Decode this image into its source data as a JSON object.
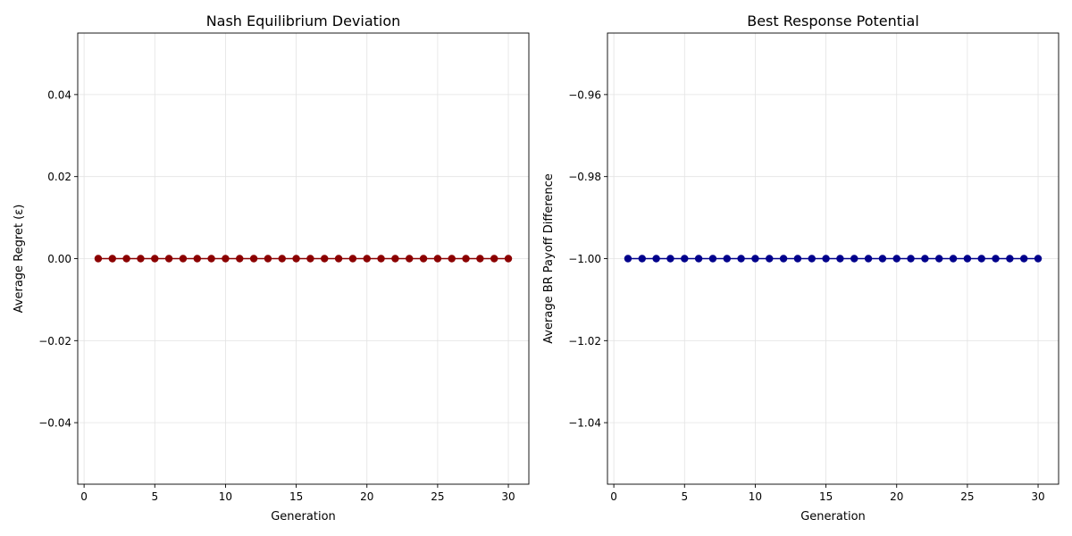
{
  "chart_data": [
    {
      "type": "line",
      "title": "Nash Equilibrium Deviation",
      "xlabel": "Generation",
      "ylabel": "Average Regret (ε)",
      "xlim": [
        -0.45,
        31.45
      ],
      "ylim": [
        -0.055,
        0.055
      ],
      "xticks": [
        0,
        5,
        10,
        15,
        20,
        25,
        30
      ],
      "xtick_labels": [
        "0",
        "5",
        "10",
        "15",
        "20",
        "25",
        "30"
      ],
      "yticks": [
        -0.04,
        -0.02,
        0.0,
        0.02,
        0.04
      ],
      "ytick_labels": [
        "−0.04",
        "−0.02",
        "0.00",
        "0.02",
        "0.04"
      ],
      "grid": true,
      "color": "#8b0000",
      "marker": "circle",
      "x": [
        1,
        2,
        3,
        4,
        5,
        6,
        7,
        8,
        9,
        10,
        11,
        12,
        13,
        14,
        15,
        16,
        17,
        18,
        19,
        20,
        21,
        22,
        23,
        24,
        25,
        26,
        27,
        28,
        29,
        30
      ],
      "y": [
        0,
        0,
        0,
        0,
        0,
        0,
        0,
        0,
        0,
        0,
        0,
        0,
        0,
        0,
        0,
        0,
        0,
        0,
        0,
        0,
        0,
        0,
        0,
        0,
        0,
        0,
        0,
        0,
        0,
        0
      ]
    },
    {
      "type": "line",
      "title": "Best Response Potential",
      "xlabel": "Generation",
      "ylabel": "Average BR Payoff Difference",
      "xlim": [
        -0.45,
        31.45
      ],
      "ylim": [
        -1.055,
        -0.945
      ],
      "xticks": [
        0,
        5,
        10,
        15,
        20,
        25,
        30
      ],
      "xtick_labels": [
        "0",
        "5",
        "10",
        "15",
        "20",
        "25",
        "30"
      ],
      "yticks": [
        -1.04,
        -1.02,
        -1.0,
        -0.98,
        -0.96
      ],
      "ytick_labels": [
        "−1.04",
        "−1.02",
        "−1.00",
        "−0.98",
        "−0.96"
      ],
      "grid": true,
      "color": "#00008b",
      "marker": "circle",
      "x": [
        1,
        2,
        3,
        4,
        5,
        6,
        7,
        8,
        9,
        10,
        11,
        12,
        13,
        14,
        15,
        16,
        17,
        18,
        19,
        20,
        21,
        22,
        23,
        24,
        25,
        26,
        27,
        28,
        29,
        30
      ],
      "y": [
        -1,
        -1,
        -1,
        -1,
        -1,
        -1,
        -1,
        -1,
        -1,
        -1,
        -1,
        -1,
        -1,
        -1,
        -1,
        -1,
        -1,
        -1,
        -1,
        -1,
        -1,
        -1,
        -1,
        -1,
        -1,
        -1,
        -1,
        -1,
        -1,
        -1
      ]
    }
  ]
}
